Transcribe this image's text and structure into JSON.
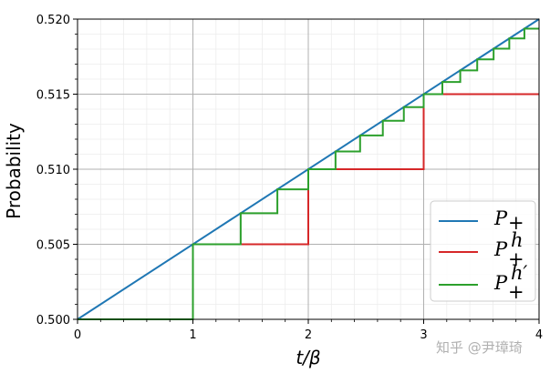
{
  "chart_data": {
    "type": "line",
    "title": "",
    "xlabel": "t/β",
    "ylabel": "Probability",
    "xlim": [
      0,
      4
    ],
    "ylim": [
      0.5,
      0.52
    ],
    "xticks": [
      "0",
      "1",
      "2",
      "3",
      "4"
    ],
    "yticks": [
      "0.500",
      "0.505",
      "0.510",
      "0.515",
      "0.520"
    ],
    "grid": true,
    "legend_position": "lower-right",
    "series": [
      {
        "name": "P+",
        "color": "#1f77b4",
        "points": [
          [
            0,
            0.5
          ],
          [
            4,
            0.52
          ]
        ]
      },
      {
        "name": "P+h",
        "color": "#d62728",
        "points": [
          [
            0,
            0.5
          ],
          [
            1,
            0.5
          ],
          [
            1,
            0.505
          ],
          [
            2,
            0.505
          ],
          [
            2,
            0.51
          ],
          [
            3,
            0.51
          ],
          [
            3,
            0.515
          ],
          [
            4,
            0.515
          ]
        ]
      },
      {
        "name": "P+h'",
        "color": "#2ca02c",
        "points": [
          [
            0,
            0.5
          ],
          [
            1,
            0.5
          ],
          [
            1,
            0.505
          ],
          [
            1.414,
            0.505
          ],
          [
            1.414,
            0.50707
          ],
          [
            1.732,
            0.50707
          ],
          [
            1.732,
            0.50866
          ],
          [
            2,
            0.50866
          ],
          [
            2,
            0.51
          ],
          [
            2.236,
            0.51
          ],
          [
            2.236,
            0.51118
          ],
          [
            2.449,
            0.51118
          ],
          [
            2.449,
            0.51225
          ],
          [
            2.646,
            0.51225
          ],
          [
            2.646,
            0.51323
          ],
          [
            2.828,
            0.51323
          ],
          [
            2.828,
            0.51414
          ],
          [
            3,
            0.51414
          ],
          [
            3,
            0.515
          ],
          [
            3.162,
            0.515
          ],
          [
            3.162,
            0.51581
          ],
          [
            3.317,
            0.51581
          ],
          [
            3.317,
            0.51658
          ],
          [
            3.464,
            0.51658
          ],
          [
            3.464,
            0.51732
          ],
          [
            3.606,
            0.51732
          ],
          [
            3.606,
            0.51803
          ],
          [
            3.742,
            0.51803
          ],
          [
            3.742,
            0.51871
          ],
          [
            3.873,
            0.51871
          ],
          [
            3.873,
            0.51936
          ],
          [
            4,
            0.51936
          ]
        ]
      }
    ]
  },
  "watermark": "知乎 @尹璋琦"
}
